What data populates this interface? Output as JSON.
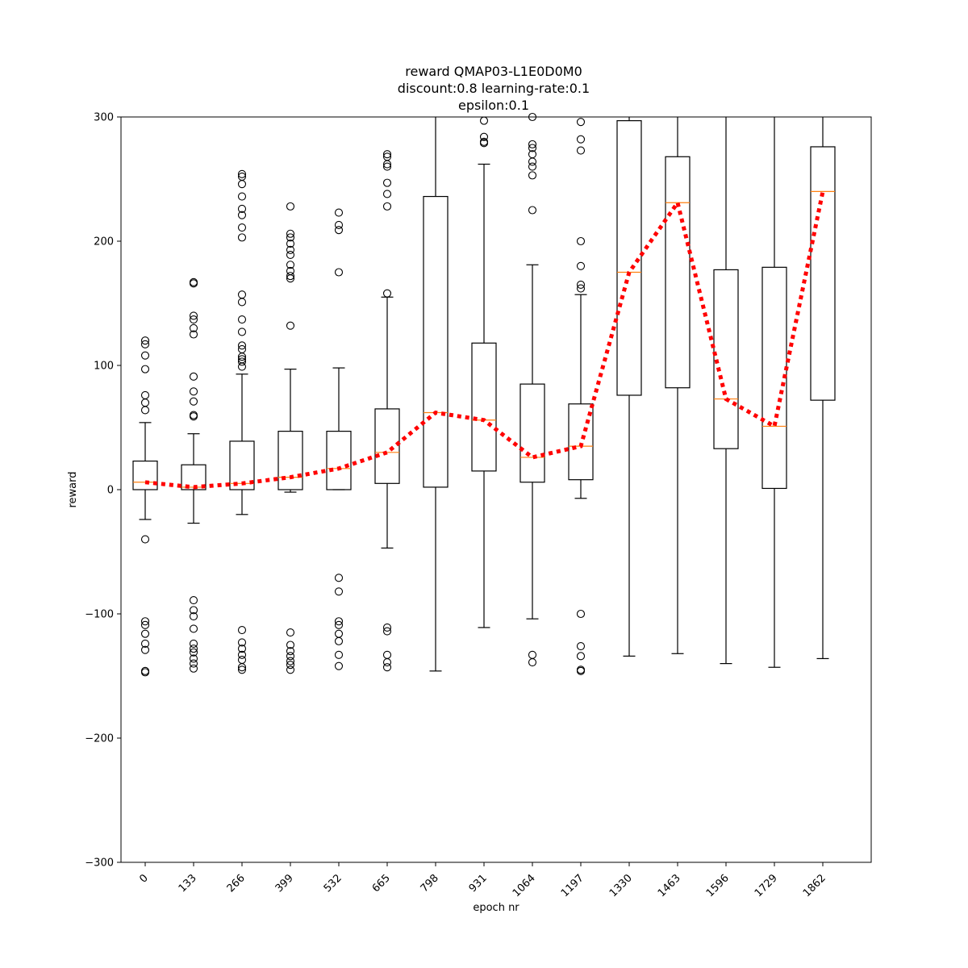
{
  "chart_data": {
    "type": "box",
    "title_lines": [
      "reward QMAP03-L1E0D0M0",
      "discount:0.8 learning-rate:0.1",
      "epsilon:0.1"
    ],
    "xlabel": "epoch nr",
    "ylabel": "reward",
    "ylim": [
      -300,
      300
    ],
    "yticks": [
      -300,
      -200,
      -100,
      0,
      100,
      200,
      300
    ],
    "grid": false,
    "categories": [
      "0",
      "133",
      "266",
      "399",
      "532",
      "665",
      "798",
      "931",
      "1064",
      "1197",
      "1330",
      "1463",
      "1596",
      "1729",
      "1862"
    ],
    "boxes": [
      {
        "q1": 0,
        "median": 6,
        "q3": 23,
        "whisker_low": -24,
        "whisker_high": 54,
        "outliers": [
          120,
          117,
          108,
          97,
          76,
          70,
          64,
          -40,
          -106,
          -109,
          -116,
          -124,
          -129,
          -146,
          -147
        ]
      },
      {
        "q1": 0,
        "median": 2,
        "q3": 20,
        "whisker_low": -27,
        "whisker_high": 45,
        "outliers": [
          167,
          166,
          140,
          137,
          130,
          125,
          91,
          79,
          71,
          60,
          59,
          -89,
          -97,
          -102,
          -112,
          -124,
          -128,
          -131,
          -136,
          -140,
          -144
        ]
      },
      {
        "q1": 0,
        "median": 5,
        "q3": 39,
        "whisker_low": -20,
        "whisker_high": 93,
        "outliers": [
          254,
          252,
          246,
          236,
          226,
          221,
          211,
          203,
          157,
          151,
          137,
          127,
          116,
          113,
          107,
          105,
          103,
          99,
          -113,
          -123,
          -128,
          -133,
          -137,
          -143,
          -145
        ]
      },
      {
        "q1": 0,
        "median": 10,
        "q3": 47,
        "whisker_low": -2,
        "whisker_high": 97,
        "outliers": [
          228,
          206,
          203,
          198,
          193,
          189,
          181,
          176,
          172,
          170,
          132,
          -115,
          -125,
          -130,
          -134,
          -138,
          -141,
          -145
        ]
      },
      {
        "q1": 0,
        "median": 17,
        "q3": 47,
        "whisker_low": 0,
        "whisker_high": 98,
        "outliers": [
          223,
          213,
          209,
          175,
          -71,
          -82,
          -106,
          -109,
          -116,
          -122,
          -133,
          -142
        ]
      },
      {
        "q1": 5,
        "median": 30,
        "q3": 65,
        "whisker_low": -47,
        "whisker_high": 155,
        "outliers": [
          270,
          268,
          262,
          260,
          247,
          238,
          228,
          158,
          -111,
          -114,
          -133,
          -139,
          -143
        ]
      },
      {
        "q1": 2,
        "median": 62,
        "q3": 236,
        "whisker_low": -146,
        "whisker_high": 300,
        "outliers": []
      },
      {
        "q1": 15,
        "median": 56,
        "q3": 118,
        "whisker_low": -111,
        "whisker_high": 262,
        "outliers": [
          297,
          284,
          280,
          279
        ]
      },
      {
        "q1": 6,
        "median": 26,
        "q3": 85,
        "whisker_low": -104,
        "whisker_high": 181,
        "outliers": [
          300,
          278,
          275,
          270,
          264,
          260,
          253,
          225,
          -133,
          -139
        ]
      },
      {
        "q1": 8,
        "median": 35,
        "q3": 69,
        "whisker_low": -7,
        "whisker_high": 157,
        "outliers": [
          296,
          282,
          273,
          200,
          180,
          165,
          162,
          -100,
          -126,
          -134,
          -145,
          -146
        ]
      },
      {
        "q1": 76,
        "median": 175,
        "q3": 297,
        "whisker_low": -134,
        "whisker_high": 300,
        "outliers": []
      },
      {
        "q1": 82,
        "median": 231,
        "q3": 268,
        "whisker_low": -132,
        "whisker_high": 300,
        "outliers": []
      },
      {
        "q1": 33,
        "median": 73,
        "q3": 177,
        "whisker_low": -140,
        "whisker_high": 300,
        "outliers": []
      },
      {
        "q1": 1,
        "median": 51,
        "q3": 179,
        "whisker_low": -143,
        "whisker_high": 300,
        "outliers": []
      },
      {
        "q1": 72,
        "median": 240,
        "q3": 276,
        "whisker_low": -136,
        "whisker_high": 300,
        "outliers": []
      }
    ],
    "mean_line": {
      "style": "dotted",
      "color": "#ff0000",
      "values": [
        6,
        2,
        5,
        10,
        17,
        30,
        62,
        56,
        26,
        35,
        175,
        231,
        73,
        51,
        240
      ]
    },
    "colors": {
      "box": "#000000",
      "median": "#ff7f0e",
      "mean_line": "#ff0000"
    }
  }
}
